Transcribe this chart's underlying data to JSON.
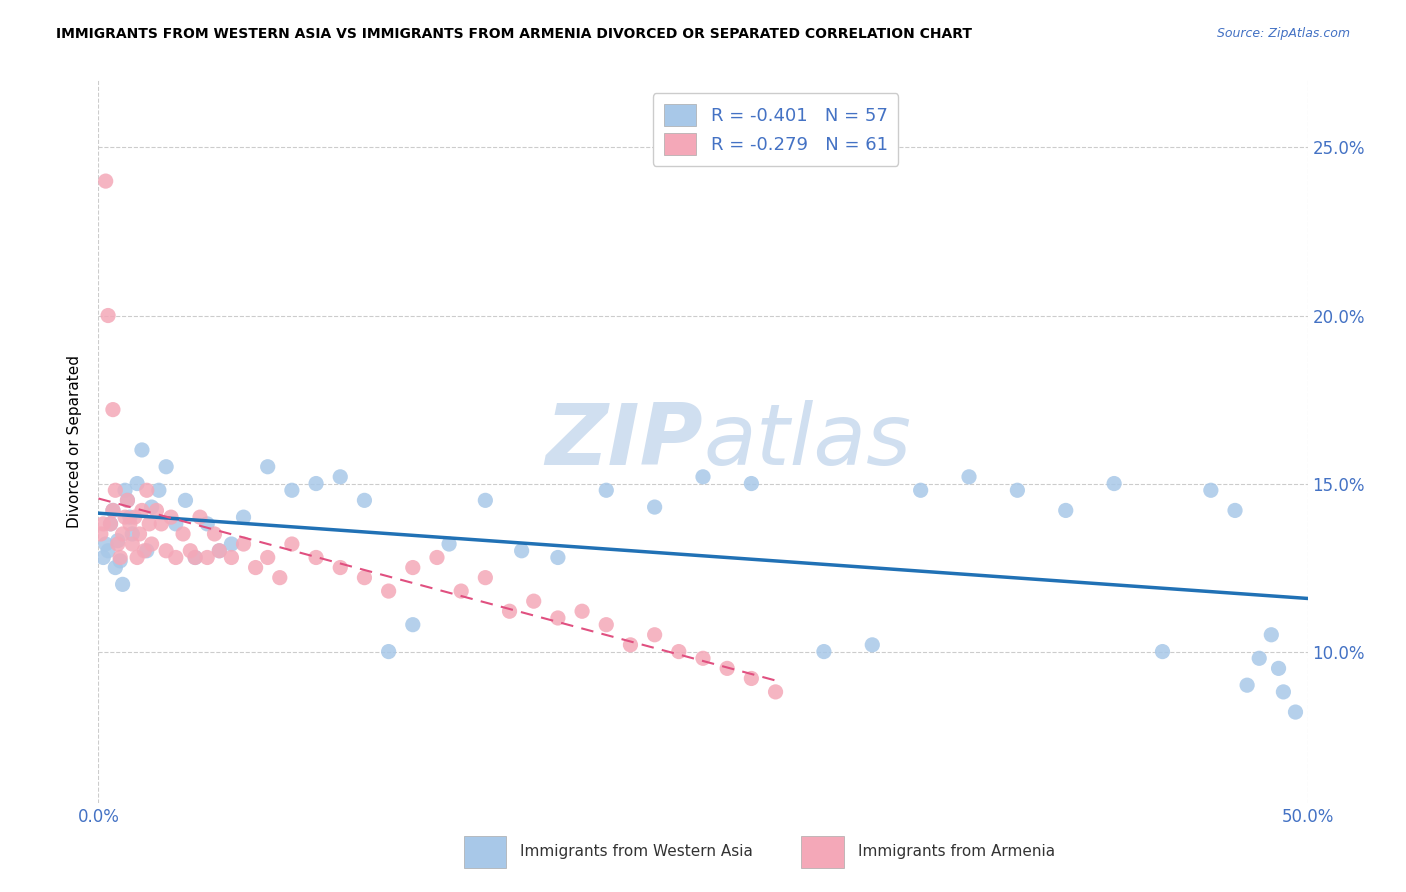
{
  "title": "IMMIGRANTS FROM WESTERN ASIA VS IMMIGRANTS FROM ARMENIA DIVORCED OR SEPARATED CORRELATION CHART",
  "source": "Source: ZipAtlas.com",
  "ylabel_left": "Divorced or Separated",
  "legend_blue_r": "R = -0.401",
  "legend_blue_n": "N = 57",
  "legend_pink_r": "R = -0.279",
  "legend_pink_n": "N = 61",
  "label_blue": "Immigrants from Western Asia",
  "label_pink": "Immigrants from Armenia",
  "blue_color": "#a8c8e8",
  "pink_color": "#f4a8b8",
  "blue_line_color": "#2171b5",
  "pink_line_color": "#e05080",
  "xlim": [
    0.0,
    0.5
  ],
  "ylim": [
    0.055,
    0.27
  ],
  "y_ticks": [
    0.1,
    0.15,
    0.2,
    0.25
  ],
  "y_tick_labels": [
    "10.0%",
    "15.0%",
    "20.0%",
    "25.0%"
  ],
  "x_ticks": [
    0.0,
    0.5
  ],
  "x_tick_labels": [
    "0.0%",
    "50.0%"
  ],
  "background_color": "#ffffff",
  "grid_color": "#cccccc",
  "axis_label_color": "#4472c4",
  "watermark_color": "#d0dff0",
  "blue_x": [
    0.002,
    0.003,
    0.004,
    0.005,
    0.006,
    0.007,
    0.008,
    0.009,
    0.01,
    0.011,
    0.012,
    0.013,
    0.014,
    0.016,
    0.018,
    0.02,
    0.022,
    0.025,
    0.028,
    0.032,
    0.036,
    0.04,
    0.045,
    0.05,
    0.055,
    0.06,
    0.07,
    0.08,
    0.09,
    0.1,
    0.11,
    0.12,
    0.13,
    0.145,
    0.16,
    0.175,
    0.19,
    0.21,
    0.23,
    0.25,
    0.27,
    0.3,
    0.32,
    0.34,
    0.36,
    0.38,
    0.4,
    0.42,
    0.44,
    0.46,
    0.47,
    0.475,
    0.48,
    0.485,
    0.488,
    0.49,
    0.495
  ],
  "blue_y": [
    0.128,
    0.132,
    0.13,
    0.138,
    0.142,
    0.125,
    0.133,
    0.127,
    0.12,
    0.148,
    0.145,
    0.14,
    0.135,
    0.15,
    0.16,
    0.13,
    0.143,
    0.148,
    0.155,
    0.138,
    0.145,
    0.128,
    0.138,
    0.13,
    0.132,
    0.14,
    0.155,
    0.148,
    0.15,
    0.152,
    0.145,
    0.1,
    0.108,
    0.132,
    0.145,
    0.13,
    0.128,
    0.148,
    0.143,
    0.152,
    0.15,
    0.1,
    0.102,
    0.148,
    0.152,
    0.148,
    0.142,
    0.15,
    0.1,
    0.148,
    0.142,
    0.09,
    0.098,
    0.105,
    0.095,
    0.088,
    0.082
  ],
  "pink_x": [
    0.001,
    0.002,
    0.003,
    0.004,
    0.005,
    0.006,
    0.006,
    0.007,
    0.008,
    0.009,
    0.01,
    0.011,
    0.012,
    0.013,
    0.014,
    0.015,
    0.016,
    0.017,
    0.018,
    0.019,
    0.02,
    0.021,
    0.022,
    0.024,
    0.026,
    0.028,
    0.03,
    0.032,
    0.035,
    0.038,
    0.04,
    0.042,
    0.045,
    0.048,
    0.05,
    0.055,
    0.06,
    0.065,
    0.07,
    0.075,
    0.08,
    0.09,
    0.1,
    0.11,
    0.12,
    0.13,
    0.14,
    0.15,
    0.16,
    0.17,
    0.18,
    0.19,
    0.2,
    0.21,
    0.22,
    0.23,
    0.24,
    0.25,
    0.26,
    0.27,
    0.28
  ],
  "pink_y": [
    0.135,
    0.138,
    0.24,
    0.2,
    0.138,
    0.142,
    0.172,
    0.148,
    0.132,
    0.128,
    0.135,
    0.14,
    0.145,
    0.138,
    0.132,
    0.14,
    0.128,
    0.135,
    0.142,
    0.13,
    0.148,
    0.138,
    0.132,
    0.142,
    0.138,
    0.13,
    0.14,
    0.128,
    0.135,
    0.13,
    0.128,
    0.14,
    0.128,
    0.135,
    0.13,
    0.128,
    0.132,
    0.125,
    0.128,
    0.122,
    0.132,
    0.128,
    0.125,
    0.122,
    0.118,
    0.125,
    0.128,
    0.118,
    0.122,
    0.112,
    0.115,
    0.11,
    0.112,
    0.108,
    0.102,
    0.105,
    0.1,
    0.098,
    0.095,
    0.092,
    0.088
  ]
}
